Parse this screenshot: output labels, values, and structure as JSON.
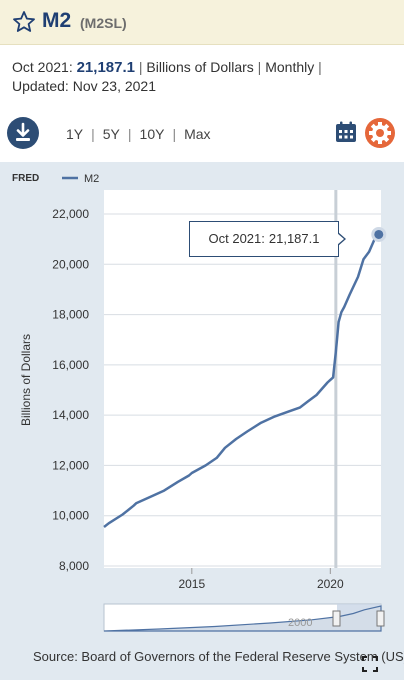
{
  "header": {
    "title": "M2",
    "series_id": "(M2SL)"
  },
  "meta": {
    "period": "Oct 2021:",
    "value": "21,187.1",
    "units": "Billions of Dollars",
    "frequency": "Monthly",
    "updated_label": "Updated:",
    "updated_date": "Nov 23, 2021",
    "separator": "|"
  },
  "toolbar": {
    "ranges": [
      "1Y",
      "5Y",
      "10Y",
      "Max"
    ],
    "download_icon": "download-icon",
    "calendar_icon": "calendar-icon",
    "settings_icon": "gear-icon"
  },
  "legend": {
    "brand": "FRED",
    "series_label": "M2"
  },
  "tooltip": {
    "date": "Oct 2021:",
    "value": "21,187.1"
  },
  "source_text": "Source: Board of Governors of the Federal Reserve System (US)",
  "navigator": {
    "label": "2000"
  },
  "colors": {
    "line": "#4f72a3",
    "panel": "#e1e9f0",
    "header": "#f6f2dc",
    "accent_orange": "#e5673a",
    "dark_blue": "#2d4d75"
  },
  "chart_data": {
    "type": "line",
    "title": "",
    "xlabel": "",
    "ylabel": "Billions of Dollars",
    "ylim": [
      8000,
      22000
    ],
    "y_ticks": [
      8000,
      10000,
      12000,
      14000,
      16000,
      18000,
      20000,
      22000
    ],
    "y_tick_labels": [
      "8,000",
      "10,000",
      "12,000",
      "14,000",
      "16,000",
      "18,000",
      "20,000",
      "22,000"
    ],
    "x_ticks": [
      2015,
      2020
    ],
    "x_tick_labels": [
      "2015",
      "2020"
    ],
    "xlim": [
      2011.83,
      2021.83
    ],
    "grid": "horizontal",
    "legend_position": "top-left",
    "series": [
      {
        "name": "M2",
        "x": [
          2011.83,
          2012.0,
          2012.5,
          2012.9,
          2013.0,
          2013.5,
          2014.0,
          2014.5,
          2014.9,
          2015.0,
          2015.5,
          2015.9,
          2016.2,
          2016.6,
          2017.0,
          2017.5,
          2018.0,
          2018.5,
          2018.9,
          2019.2,
          2019.5,
          2019.9,
          2020.0,
          2020.1,
          2020.2,
          2020.3,
          2020.4,
          2020.5,
          2020.7,
          2021.0,
          2021.2,
          2021.4,
          2021.6,
          2021.75
        ],
        "values": [
          9550,
          9700,
          10050,
          10400,
          10500,
          10750,
          11000,
          11350,
          11600,
          11700,
          12000,
          12300,
          12700,
          13050,
          13350,
          13700,
          13950,
          14150,
          14300,
          14550,
          14800,
          15300,
          15400,
          15500,
          16500,
          17700,
          18100,
          18300,
          18800,
          19500,
          20200,
          20500,
          21000,
          21187.1
        ]
      }
    ],
    "highlight_point": {
      "x": "Oct 2021",
      "value": 21187.1
    },
    "navigator_series": [
      [
        0.0,
        0.0
      ],
      [
        0.2,
        0.08
      ],
      [
        0.4,
        0.18
      ],
      [
        0.6,
        0.32
      ],
      [
        0.75,
        0.45
      ],
      [
        0.85,
        0.58
      ],
      [
        0.9,
        0.7
      ],
      [
        0.94,
        0.85
      ],
      [
        1.0,
        1.0
      ]
    ]
  }
}
